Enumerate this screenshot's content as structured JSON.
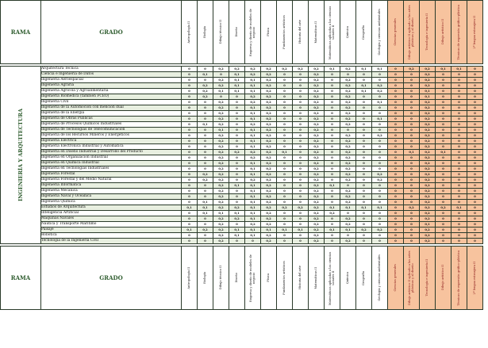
{
  "header": {
    "rama": "RAMA",
    "grado": "GRADO"
  },
  "rama_name": "INGENIERÍA Y ARQUITECTURA",
  "colors": {
    "accent_green": "#2e5c2e",
    "highlight_orange": "#f7c39e",
    "alt_row": "#e8efe0"
  },
  "subjects": [
    {
      "label": "Antropología II",
      "highlight": false
    },
    {
      "label": "Biología",
      "highlight": false
    },
    {
      "label": "Dibujo técnico II",
      "highlight": false
    },
    {
      "label": "Diseño",
      "highlight": false
    },
    {
      "label": "Empresa y diseño de modelos de negocio",
      "highlight": false
    },
    {
      "label": "Física",
      "highlight": false
    },
    {
      "label": "Fundamentos artísticos",
      "highlight": false
    },
    {
      "label": "Historia del arte",
      "highlight": false
    },
    {
      "label": "Matemáticas II",
      "highlight": false
    },
    {
      "label": "Matemáticas aplicadas a las ciencias sociales II",
      "highlight": false
    },
    {
      "label": "Química",
      "highlight": false
    },
    {
      "label": "Geografía",
      "highlight": false
    },
    {
      "label": "Geología y ciencias ambientales",
      "highlight": false
    },
    {
      "label": "Ciencias generales",
      "highlight": true
    },
    {
      "label": "Dibujo artístico II aplicado a las artes plásticas y al diseño",
      "highlight": true
    },
    {
      "label": "Tecnología e ingeniería II",
      "highlight": true
    },
    {
      "label": "Dibujo artístico II",
      "highlight": true
    },
    {
      "label": "Técnicas de expresión gráfico-plástica",
      "highlight": true
    },
    {
      "label": "2ª lengua extranjera II",
      "highlight": true
    }
  ],
  "degrees": [
    {
      "name": "Arquitectura Técnica",
      "values": [
        "0",
        "0",
        "0,2",
        "0,2",
        "0,2",
        "0,2",
        "0,2",
        "0,2",
        "0,2",
        "0,1",
        "0,2",
        "0,1",
        "0,1",
        "0",
        "0,2",
        "0,2",
        "0,1",
        "0,1",
        "0"
      ]
    },
    {
      "name": "Ciencia e Ingeniería de Datos",
      "values": [
        "0",
        "0,1",
        "0",
        "0,1",
        "0,2",
        "0,2",
        "0",
        "0",
        "0,2",
        "0",
        "0",
        "0",
        "0",
        "0",
        "0",
        "0,2",
        "0",
        "0",
        "0"
      ]
    },
    {
      "name": "Ingeniería Aeroespacial",
      "values": [
        "0",
        "0",
        "0,2",
        "0,1",
        "0,1",
        "0,2",
        "0",
        "0",
        "0,2",
        "0",
        "0,2",
        "0",
        "0",
        "0",
        "0",
        "0,2",
        "0",
        "0",
        "0"
      ]
    },
    {
      "name": "Ingeniería Agraria",
      "values": [
        "0",
        "0,2",
        "0,2",
        "0,1",
        "0,1",
        "0,2",
        "0",
        "0",
        "0,2",
        "0",
        "0,2",
        "0,1",
        "0,2",
        "0",
        "0",
        "0,2",
        "0",
        "0",
        "0"
      ]
    },
    {
      "name": "Ingeniería Agrícola y Agroalimentaria",
      "values": [
        "0",
        "0,2",
        "0,1",
        "0,1",
        "0,1",
        "0,2",
        "0",
        "0",
        "0,2",
        "0",
        "0,2",
        "0,1",
        "0,2",
        "0",
        "0",
        "0,1",
        "0",
        "0",
        "0"
      ]
    },
    {
      "name": "Ingeniería Biomédica (también FCEO)",
      "values": [
        "0",
        "0,2",
        "0",
        "0",
        "0,2",
        "0,2",
        "0",
        "0",
        "0,2",
        "0",
        "0,2",
        "0",
        "0",
        "0",
        "0",
        "0,1",
        "0",
        "0",
        "0"
      ]
    },
    {
      "name": "Ingeniería Civil",
      "values": [
        "0",
        "0",
        "0,2",
        "0",
        "0,2",
        "0,2",
        "0",
        "0",
        "0,2",
        "0",
        "0,2",
        "0",
        "0,1",
        "0",
        "0",
        "0,2",
        "0",
        "0",
        "0"
      ]
    },
    {
      "name": "Ingeniería de la Automoción con mención dual",
      "values": [
        "0",
        "0",
        "0,2",
        "0",
        "0,1",
        "0,2",
        "0",
        "0",
        "0,2",
        "0",
        "0,2",
        "0",
        "0",
        "0",
        "0",
        "0,2",
        "0",
        "0",
        "0"
      ]
    },
    {
      "name": "Ingeniería de la Energía",
      "values": [
        "0",
        "0",
        "0,2",
        "0",
        "0,1",
        "0,2",
        "0",
        "0",
        "0,2",
        "0",
        "0,2",
        "0",
        "0",
        "0",
        "0",
        "0,2",
        "0",
        "0",
        "0"
      ]
    },
    {
      "name": "Ingeniería de Obras Públicas",
      "values": [
        "0",
        "0",
        "0,2",
        "0",
        "0,1",
        "0,2",
        "0",
        "0",
        "0,2",
        "0",
        "0,2",
        "0",
        "0,1",
        "0",
        "0",
        "0,2",
        "0",
        "0",
        "0"
      ]
    },
    {
      "name": "Ingeniería de Procesos Químicos Industriales",
      "values": [
        "0",
        "0,1",
        "0,2",
        "0",
        "0,2",
        "0,2",
        "0",
        "0",
        "0,2",
        "0",
        "0,2",
        "0",
        "0",
        "0",
        "0",
        "0,2",
        "0",
        "0",
        "0"
      ]
    },
    {
      "name": "Ingeniería de Tecnologías de Telecomunicación",
      "values": [
        "0",
        "0",
        "0,1",
        "0",
        "0,1",
        "0,2",
        "0",
        "0",
        "0,2",
        "0",
        "0",
        "0",
        "0",
        "0",
        "0",
        "0,2",
        "0",
        "0",
        "0"
      ]
    },
    {
      "name": "Ingeniería de los Recursos Mineros y Energéticos",
      "values": [
        "0",
        "0",
        "0,2",
        "0",
        "0,1",
        "0,2",
        "0",
        "0",
        "0,2",
        "0",
        "0,2",
        "0",
        "0,2",
        "0",
        "0",
        "0,2",
        "0",
        "0",
        "0"
      ]
    },
    {
      "name": "Ingeniería Eléctrica",
      "values": [
        "0",
        "0",
        "0,2",
        "0",
        "0,1",
        "0,2",
        "0",
        "0",
        "0,2",
        "0",
        "0,2",
        "0",
        "0",
        "0",
        "0",
        "0,2",
        "0",
        "0",
        "0"
      ]
    },
    {
      "name": "Ingeniería Electrónica Industrial y Automática",
      "values": [
        "0",
        "0",
        "0,2",
        "0",
        "0,1",
        "0,2",
        "0",
        "0",
        "0,2",
        "0",
        "0,2",
        "0",
        "0",
        "0",
        "0",
        "0,2",
        "0",
        "0",
        "0"
      ]
    },
    {
      "name": "Ingeniería en Diseño Industrial y Desarrollo del Producto",
      "values": [
        "0",
        "0",
        "0,2",
        "0,2",
        "0,2",
        "0,2",
        "0,1",
        "0",
        "0,2",
        "0",
        "0,2",
        "0",
        "0",
        "0",
        "0,1",
        "0,2",
        "0,1",
        "0",
        "0"
      ]
    },
    {
      "name": "Ingeniería en Organización Industrial",
      "values": [
        "0",
        "0",
        "0,2",
        "0",
        "0,2",
        "0,2",
        "0",
        "0",
        "0,2",
        "0",
        "0,2",
        "0",
        "0",
        "0",
        "0",
        "0,2",
        "0",
        "0",
        "0"
      ]
    },
    {
      "name": "Ingeniería en Química Industrial",
      "values": [
        "0",
        "0",
        "0,2",
        "0",
        "0,1",
        "0,2",
        "0",
        "0",
        "0,2",
        "0",
        "0,2",
        "0",
        "0",
        "0",
        "0",
        "0,2",
        "0",
        "0",
        "0"
      ]
    },
    {
      "name": "Ingeniería en Tecnologías Industriales",
      "values": [
        "0",
        "0",
        "0,2",
        "0",
        "0,1",
        "0,2",
        "0",
        "0",
        "0,2",
        "0",
        "0,2",
        "0",
        "0",
        "0",
        "0",
        "0,2",
        "0",
        "0",
        "0"
      ]
    },
    {
      "name": "Ingeniería Forestal",
      "values": [
        "0",
        "0,2",
        "0,2",
        "0",
        "0,1",
        "0,2",
        "0",
        "0",
        "0,2",
        "0",
        "0,2",
        "0",
        "0,2",
        "0",
        "0",
        "0,2",
        "0",
        "0",
        "0"
      ]
    },
    {
      "name": "Ingeniería Forestal y del Medio Natural",
      "values": [
        "0",
        "0,2",
        "0,2",
        "0",
        "0,2",
        "0,2",
        "0",
        "0",
        "0,2",
        "0",
        "0,2",
        "0",
        "0,2",
        "0",
        "0",
        "0,2",
        "0",
        "0",
        "0"
      ]
    },
    {
      "name": "Ingeniería Informática",
      "values": [
        "0",
        "0",
        "0,2",
        "0,1",
        "0,1",
        "0,2",
        "0",
        "0",
        "0,2",
        "0,1",
        "0",
        "0",
        "0",
        "0",
        "0",
        "0,2",
        "0",
        "0",
        "0"
      ]
    },
    {
      "name": "Ingeniería Mecánica",
      "values": [
        "0",
        "0",
        "0,2",
        "0",
        "0,1",
        "0,2",
        "0",
        "0",
        "0,2",
        "0",
        "0,2",
        "0",
        "0",
        "0",
        "0",
        "0,2",
        "0",
        "0",
        "0"
      ]
    },
    {
      "name": "Ingeniería Naval y Oceánica",
      "values": [
        "0",
        "0",
        "0,2",
        "0",
        "0,1",
        "0,2",
        "0",
        "0",
        "0,2",
        "0",
        "0,2",
        "0",
        "0",
        "0",
        "0",
        "0,2",
        "0",
        "0",
        "0"
      ]
    },
    {
      "name": "Ingeniería Química",
      "values": [
        "0",
        "0,1",
        "0,2",
        "0",
        "0,1",
        "0,2",
        "0",
        "0",
        "0,2",
        "0",
        "0,2",
        "0",
        "0",
        "0",
        "0",
        "0,2",
        "0",
        "0",
        "0"
      ]
    },
    {
      "name": "Estudios de Arquitectura",
      "values": [
        "0,1",
        "0,1",
        "0,2",
        "0,2",
        "0,1",
        "0,2",
        "0,2",
        "0,2",
        "0,2",
        "0,1",
        "0,1",
        "0,1",
        "0,1",
        "0",
        "0,2",
        "0,2",
        "0,2",
        "0,1",
        "0"
      ]
    },
    {
      "name": "Inteligencia Artificial",
      "values": [
        "0",
        "0,1",
        "0,1",
        "0,1",
        "0,1",
        "0,2",
        "0",
        "0",
        "0,2",
        "0,2",
        "0",
        "0",
        "0",
        "0",
        "0",
        "0,2",
        "0",
        "0",
        "0"
      ]
    },
    {
      "name": "Máquinas Navales",
      "values": [
        "0",
        "0",
        "0,2",
        "0,2",
        "0,1",
        "0,2",
        "0",
        "0",
        "0,2",
        "0",
        "0,2",
        "0",
        "0",
        "0",
        "0",
        "0,2",
        "0",
        "0",
        "0"
      ]
    },
    {
      "name": "Náutica y Transporte Marítimo",
      "values": [
        "0",
        "0",
        "0,2",
        "0",
        "0,2",
        "0,2",
        "0",
        "0",
        "0,2",
        "0",
        "0,2",
        "0",
        "0",
        "0",
        "0",
        "0,1",
        "0",
        "0",
        "0"
      ]
    },
    {
      "name": "Paisaje",
      "values": [
        "0,1",
        "0,2",
        "0,2",
        "0,1",
        "0,1",
        "0,1",
        "0,1",
        "0,1",
        "0,2",
        "0,1",
        "0,1",
        "0,2",
        "0,2",
        "0",
        "0",
        "0,2",
        "0",
        "0",
        "0"
      ]
    },
    {
      "name": "Robótica",
      "values": [
        "0",
        "0",
        "0,2",
        "0,1",
        "0,1",
        "0,2",
        "0",
        "0",
        "0,2",
        "0",
        "0",
        "0",
        "0",
        "0",
        "0",
        "0,2",
        "0",
        "0",
        "0"
      ]
    },
    {
      "name": "Tecnología de la Ingeniería Civil",
      "values": [
        "0",
        "0",
        "0,2",
        "0",
        "0",
        "0,2",
        "0",
        "0",
        "0,2",
        "0",
        "0,2",
        "0",
        "0",
        "0",
        "0",
        "0,2",
        "0",
        "0",
        "0"
      ]
    }
  ]
}
